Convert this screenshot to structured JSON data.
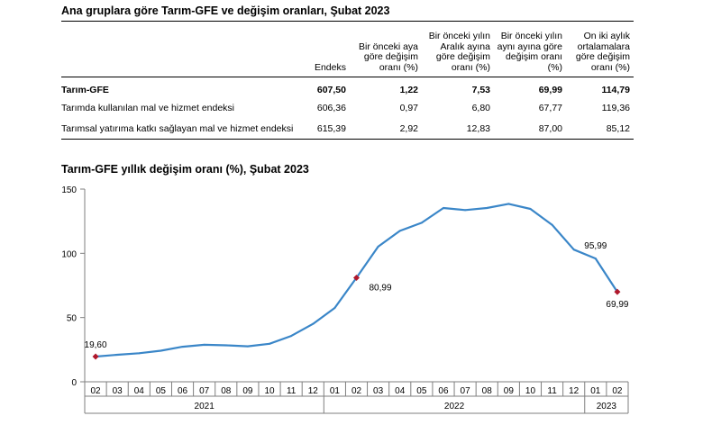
{
  "table": {
    "title": "Ana gruplara göre Tarım-GFE ve değişim oranları, Şubat 2023",
    "columns": [
      "",
      "Endeks",
      "Bir önceki aya göre değişim oranı (%)",
      "Bir önceki yılın Aralık ayına göre değişim oranı (%)",
      "Bir önceki yılın aynı ayına göre değişim oranı (%)",
      "On iki aylık ortalamalara göre değişim oranı (%)"
    ],
    "rows": [
      {
        "label": "Tarım-GFE",
        "values": [
          "607,50",
          "1,22",
          "7,53",
          "69,99",
          "114,79"
        ],
        "bold": true
      },
      {
        "label": "Tarımda kullanılan mal ve hizmet endeksi",
        "values": [
          "606,36",
          "0,97",
          "6,80",
          "67,77",
          "119,36"
        ],
        "bold": false
      },
      {
        "label": "Tarımsal yatırıma katkı sağlayan mal ve hizmet endeksi",
        "values": [
          "615,39",
          "2,92",
          "12,83",
          "87,00",
          "85,12"
        ],
        "bold": false
      }
    ]
  },
  "chart_data": {
    "type": "line",
    "title": "Tarım-GFE yıllık değişim oranı (%), Şubat 2023",
    "categories": [
      "02",
      "03",
      "04",
      "05",
      "06",
      "07",
      "08",
      "09",
      "10",
      "11",
      "12",
      "01",
      "02",
      "03",
      "04",
      "05",
      "06",
      "07",
      "08",
      "09",
      "10",
      "11",
      "12",
      "01",
      "02"
    ],
    "year_labels": [
      {
        "label": "2021",
        "start": 0,
        "end": 10
      },
      {
        "label": "2022",
        "start": 11,
        "end": 22
      },
      {
        "label": "2023",
        "start": 23,
        "end": 24
      }
    ],
    "series": [
      {
        "values": [
          19.6,
          21,
          22.2,
          24.2,
          27.3,
          28.8,
          28.4,
          27.6,
          29.6,
          35.7,
          45.1,
          57.5,
          80.99,
          105.2,
          117.5,
          123.8,
          135.3,
          133.7,
          135.3,
          138.5,
          134.6,
          122.2,
          102.9,
          95.99,
          69.99
        ],
        "color": "#3a86c8"
      }
    ],
    "labeled_points": [
      {
        "index": 0,
        "text": "19,60"
      },
      {
        "index": 12,
        "text": "80,99"
      },
      {
        "index": 23,
        "text": "95,99"
      },
      {
        "index": 24,
        "text": "69,99"
      }
    ],
    "marker_points": [
      0,
      12,
      24
    ],
    "marker_color": "#b0182c",
    "yticks": [
      0,
      50,
      100,
      150
    ],
    "ylim": [
      0,
      150
    ],
    "grid": false
  }
}
